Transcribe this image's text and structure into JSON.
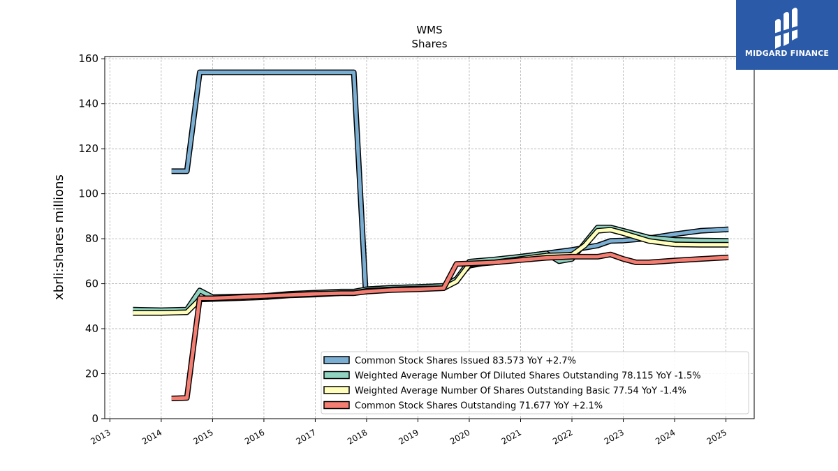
{
  "chart_data": {
    "type": "line",
    "title": "WMS",
    "subtitle": "Shares",
    "ylabel": "xbrli:shares millions",
    "xlabel": "",
    "xlim": [
      2012.9,
      2025.55
    ],
    "ylim": [
      0,
      161
    ],
    "yticks": [
      0,
      20,
      40,
      60,
      80,
      100,
      120,
      140,
      160
    ],
    "xticks": [
      2013,
      2014,
      2015,
      2016,
      2017,
      2018,
      2019,
      2020,
      2021,
      2022,
      2023,
      2024,
      2025
    ],
    "grid": true,
    "legend_position": "lower-right",
    "series": [
      {
        "name": "Common Stock Shares Issued  83.573 YoY +2.7%",
        "color": "#7aaed3",
        "points": [
          [
            2014.2,
            110
          ],
          [
            2014.5,
            110
          ],
          [
            2014.75,
            154
          ],
          [
            2015.0,
            154
          ],
          [
            2016.0,
            154
          ],
          [
            2017.0,
            154
          ],
          [
            2017.75,
            154
          ],
          [
            2017.98,
            57.5
          ],
          [
            2018.5,
            58.2
          ],
          [
            2019.0,
            58.5
          ],
          [
            2019.5,
            59
          ],
          [
            2019.75,
            62
          ],
          [
            2020.0,
            68
          ],
          [
            2020.5,
            70
          ],
          [
            2021.0,
            72
          ],
          [
            2021.5,
            73.5
          ],
          [
            2022.0,
            75
          ],
          [
            2022.5,
            77
          ],
          [
            2022.75,
            79
          ],
          [
            2023.0,
            79.2
          ],
          [
            2023.5,
            80.2
          ],
          [
            2024.0,
            82
          ],
          [
            2024.5,
            83.5
          ],
          [
            2025.05,
            84.2
          ]
        ]
      },
      {
        "name": "Weighted Average Number Of Diluted Shares Outstanding  78.115 YoY -1.5%",
        "color": "#8fd3c0",
        "points": [
          [
            2013.45,
            48.5
          ],
          [
            2014.0,
            48.2
          ],
          [
            2014.5,
            48.5
          ],
          [
            2014.75,
            57
          ],
          [
            2015.0,
            54
          ],
          [
            2015.5,
            54.3
          ],
          [
            2016.0,
            54.5
          ],
          [
            2016.5,
            55.5
          ],
          [
            2017.0,
            56
          ],
          [
            2017.5,
            56.5
          ],
          [
            2017.75,
            56.5
          ],
          [
            2018.0,
            57.5
          ],
          [
            2018.5,
            58.2
          ],
          [
            2019.0,
            58.5
          ],
          [
            2019.5,
            59
          ],
          [
            2019.75,
            62
          ],
          [
            2020.0,
            69.8
          ],
          [
            2020.5,
            70.8
          ],
          [
            2021.0,
            72
          ],
          [
            2021.5,
            73.5
          ],
          [
            2021.75,
            70
          ],
          [
            2022.0,
            71
          ],
          [
            2022.25,
            78
          ],
          [
            2022.5,
            85
          ],
          [
            2022.75,
            85
          ],
          [
            2023.0,
            83.5
          ],
          [
            2023.5,
            80.5
          ],
          [
            2024.0,
            79.5
          ],
          [
            2024.5,
            79.2
          ],
          [
            2025.05,
            79
          ]
        ]
      },
      {
        "name": "Weighted Average Number Of Shares Outstanding Basic  77.54 YoY -1.4%",
        "color": "#ffffbb",
        "points": [
          [
            2013.45,
            47
          ],
          [
            2014.0,
            47
          ],
          [
            2014.5,
            47.3
          ],
          [
            2014.75,
            53
          ],
          [
            2015.0,
            53.2
          ],
          [
            2015.5,
            53.6
          ],
          [
            2016.0,
            54
          ],
          [
            2016.5,
            54.8
          ],
          [
            2017.0,
            55.2
          ],
          [
            2017.5,
            55.8
          ],
          [
            2017.75,
            55.8
          ],
          [
            2018.0,
            56.8
          ],
          [
            2018.5,
            57.5
          ],
          [
            2019.0,
            57.8
          ],
          [
            2019.5,
            58
          ],
          [
            2019.75,
            61
          ],
          [
            2020.0,
            68.5
          ],
          [
            2020.5,
            69.5
          ],
          [
            2021.0,
            71
          ],
          [
            2021.5,
            72.5
          ],
          [
            2022.0,
            72.8
          ],
          [
            2022.25,
            77
          ],
          [
            2022.5,
            83.5
          ],
          [
            2022.75,
            84
          ],
          [
            2023.0,
            82.5
          ],
          [
            2023.5,
            79
          ],
          [
            2024.0,
            77.5
          ],
          [
            2024.5,
            77.3
          ],
          [
            2025.05,
            77.3
          ]
        ]
      },
      {
        "name": "Common Stock Shares Outstanding  71.677 YoY +2.1%",
        "color": "#f47e72",
        "points": [
          [
            2014.2,
            9
          ],
          [
            2014.5,
            9.2
          ],
          [
            2014.75,
            53.5
          ],
          [
            2015.0,
            53.5
          ],
          [
            2015.5,
            54
          ],
          [
            2016.0,
            54.5
          ],
          [
            2016.5,
            55
          ],
          [
            2017.0,
            55.5
          ],
          [
            2017.5,
            55.8
          ],
          [
            2017.75,
            55.8
          ],
          [
            2018.0,
            56.5
          ],
          [
            2018.5,
            57.2
          ],
          [
            2019.0,
            57.5
          ],
          [
            2019.5,
            58
          ],
          [
            2019.75,
            68.8
          ],
          [
            2020.0,
            69
          ],
          [
            2020.5,
            69.5
          ],
          [
            2021.0,
            70.5
          ],
          [
            2021.5,
            71.5
          ],
          [
            2022.0,
            72
          ],
          [
            2022.5,
            72
          ],
          [
            2022.75,
            73
          ],
          [
            2023.0,
            71
          ],
          [
            2023.25,
            69.5
          ],
          [
            2023.5,
            69.5
          ],
          [
            2024.0,
            70.3
          ],
          [
            2024.5,
            71
          ],
          [
            2025.05,
            71.7
          ]
        ]
      }
    ]
  },
  "logo": {
    "text": "MIDGARD FINANCE",
    "color": "#2a5aa8"
  }
}
